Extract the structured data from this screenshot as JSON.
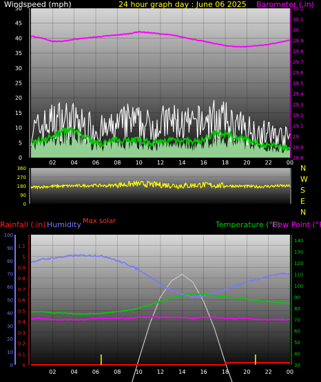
{
  "header": {
    "windspeed_title": "Windspeed (mph)",
    "graph_title": "24 hour graph day : June 06 2025",
    "barometer_title": "Barometer (.in)"
  },
  "lower_header": {
    "rainfall_title": "Rainfall (.in)",
    "humidity_title": "Humidity",
    "max_solar_title": "Max solar",
    "temperature_title": "Temperature (°F)",
    "dewpoint_title": "Dew Point (°F)"
  },
  "compass_labels": [
    "N",
    "W",
    "S",
    "E",
    "N"
  ],
  "colors": {
    "wind_gust": "#ffffff",
    "wind_avg": "#00c800",
    "wind_fill": "#a8f0a8",
    "barometer": "#ff00ff",
    "direction": "#ffff00",
    "humidity": "#7878ff",
    "temperature": "#00d000",
    "dewpoint": "#ff00ff",
    "solar": "#c8c8c8",
    "rain": "#ff0000",
    "rain_ticks": "#ffff00"
  },
  "chart_data": [
    {
      "type": "line",
      "name": "wind_and_barometer",
      "x_tick_labels": [
        "02",
        "04",
        "06",
        "08",
        "10",
        "12",
        "14",
        "16",
        "18",
        "20",
        "22",
        "00"
      ],
      "ylim_left": [
        0,
        50
      ],
      "y_left_ticks": [
        "0",
        "5",
        "10",
        "15",
        "20",
        "25",
        "30",
        "35",
        "40",
        "45",
        "50"
      ],
      "ylim_right": [
        28.8,
        30.2
      ],
      "y_right_ticks": [
        "28.8",
        "28.9",
        "29",
        "29.1",
        "29.2",
        "29.3",
        "29.4",
        "29.5",
        "29.6",
        "29.7",
        "29.8",
        "29.9",
        "30",
        "30.1",
        "30.2"
      ],
      "x_hours": [
        0,
        1,
        2,
        3,
        4,
        5,
        6,
        7,
        8,
        9,
        10,
        11,
        12,
        13,
        14,
        15,
        16,
        17,
        18,
        19,
        20,
        21,
        22,
        23,
        24
      ],
      "series": [
        {
          "values": [
            11,
            13,
            15,
            16,
            15,
            13,
            12,
            11,
            13,
            15,
            14,
            13,
            14,
            15,
            14,
            13,
            15,
            16,
            15,
            13,
            12,
            11,
            10,
            9,
            8
          ]
        },
        {
          "values": [
            5,
            6,
            7,
            9,
            9,
            7,
            5,
            5,
            6,
            6,
            6,
            5,
            5,
            6,
            6,
            5,
            6,
            8,
            8,
            7,
            6,
            5,
            4,
            4,
            3
          ]
        },
        {
          "values": [
            29.94,
            29.92,
            29.89,
            29.89,
            29.91,
            29.92,
            29.93,
            29.94,
            29.95,
            29.96,
            29.98,
            29.97,
            29.96,
            29.95,
            29.93,
            29.91,
            29.89,
            29.87,
            29.85,
            29.84,
            29.84,
            29.85,
            29.86,
            29.88,
            29.9
          ]
        }
      ]
    },
    {
      "type": "line",
      "name": "wind_direction",
      "ylim": [
        0,
        360
      ],
      "y_ticks": [
        "0",
        "90",
        "180",
        "270",
        "360"
      ],
      "x_hours": [
        0,
        1,
        2,
        3,
        4,
        5,
        6,
        7,
        8,
        9,
        10,
        11,
        12,
        13,
        14,
        15,
        16,
        17,
        18,
        19,
        20,
        21,
        22,
        23,
        24
      ],
      "series": [
        {
          "values": [
            165,
            170,
            175,
            178,
            180,
            182,
            185,
            180,
            190,
            195,
            200,
            195,
            190,
            185,
            180,
            185,
            190,
            185,
            180,
            178,
            175,
            172,
            175,
            180,
            178
          ]
        }
      ]
    },
    {
      "type": "line",
      "name": "rain_humidity_temperature",
      "x_tick_labels": [
        "02",
        "04",
        "06",
        "08",
        "10",
        "12",
        "14",
        "16",
        "18",
        "20",
        "22",
        "00"
      ],
      "rain_ylim": [
        0,
        1.2
      ],
      "rain_ticks": [
        "0",
        "0.1",
        "0.2",
        "0.3",
        "0.4",
        "0.5",
        "0.6",
        "0.7",
        "0.8",
        "0.9",
        "1",
        "1.1"
      ],
      "humidity_ylim": [
        0,
        100
      ],
      "humidity_ticks": [
        "0",
        "10",
        "20",
        "30",
        "40",
        "50",
        "60",
        "70",
        "80",
        "90",
        "100"
      ],
      "temp_ylim": [
        30,
        145
      ],
      "temp_ticks": [
        "30",
        "40",
        "50",
        "60",
        "70",
        "80",
        "90",
        "100",
        "110",
        "120",
        "130",
        "140"
      ],
      "x_hours": [
        0,
        1,
        2,
        3,
        4,
        5,
        6,
        7,
        8,
        9,
        10,
        11,
        12,
        13,
        14,
        15,
        16,
        17,
        18,
        19,
        20,
        21,
        22,
        23,
        24
      ],
      "series": [
        {
          "values": [
            79,
            81,
            82,
            83,
            84,
            84,
            84,
            83,
            80,
            77,
            73,
            68,
            62,
            57,
            54,
            52,
            53,
            55,
            58,
            61,
            64,
            66,
            68,
            70,
            70
          ]
        },
        {
          "values": [
            77,
            77,
            76,
            76,
            75,
            75,
            75,
            76,
            77,
            78,
            80,
            83,
            86,
            89,
            91,
            93,
            92,
            91,
            90,
            89,
            88,
            87,
            86,
            85,
            84
          ]
        },
        {
          "values": [
            71,
            71,
            70,
            70,
            70,
            70,
            71,
            71,
            71,
            71,
            72,
            72,
            72,
            72,
            72,
            71,
            72,
            72,
            71,
            71,
            71,
            70,
            70,
            70,
            70
          ]
        },
        {
          "values": [
            0,
            0,
            0,
            0,
            0,
            0,
            0,
            0,
            0,
            3,
            35,
            66,
            90,
            104,
            110,
            103,
            86,
            62,
            32,
            5,
            0,
            0,
            0,
            0,
            0
          ]
        },
        {
          "values": [
            0.0,
            0.0,
            0.0,
            0.0,
            0.0,
            0.0,
            0.0,
            0.0,
            0.0,
            0.0,
            0.0,
            0.0,
            0.0,
            0.0,
            0.0,
            0.0,
            0.0,
            0.0,
            0.02,
            0.02,
            0.02,
            0.02,
            0.02,
            0.02,
            0.02
          ]
        }
      ]
    }
  ]
}
